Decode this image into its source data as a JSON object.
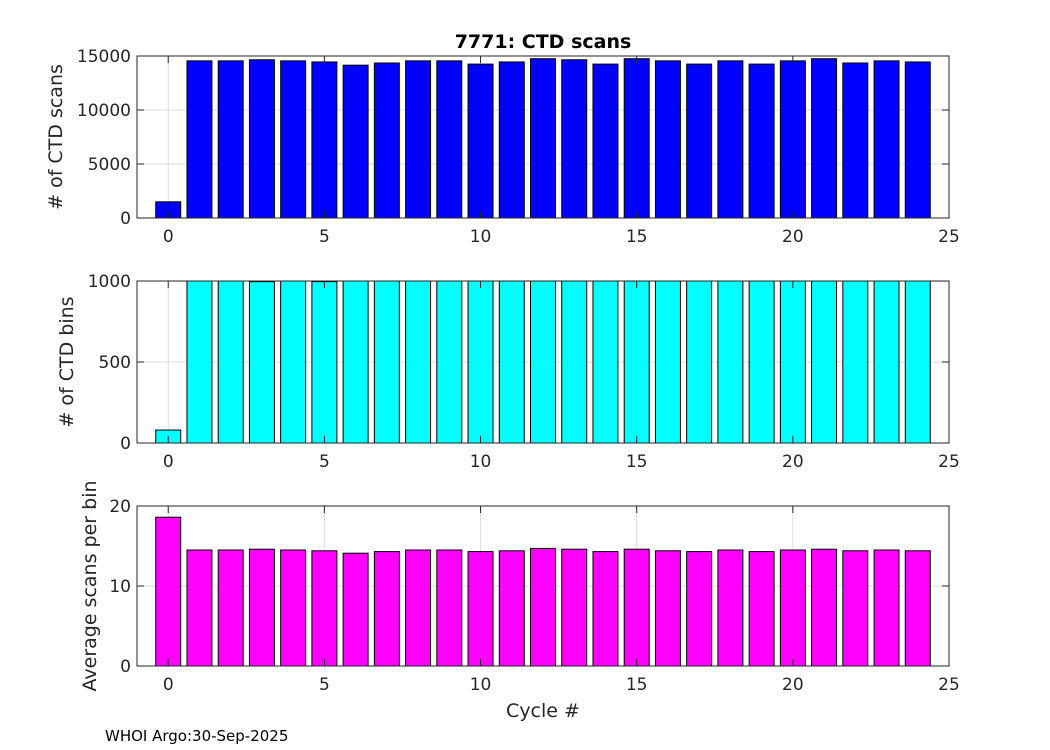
{
  "footer": "WHOI Argo:30-Sep-2025",
  "chart_data": [
    {
      "type": "bar",
      "title": "7771: CTD scans",
      "xlabel": "",
      "ylabel": "# of CTD scans",
      "xlim": [
        -1,
        25
      ],
      "ylim": [
        0,
        15000
      ],
      "xticks": [
        0,
        5,
        10,
        15,
        20,
        25
      ],
      "yticks": [
        0,
        5000,
        10000,
        15000
      ],
      "grid": true,
      "bar_color": "#0000ff",
      "x": [
        0,
        1,
        2,
        3,
        4,
        5,
        6,
        7,
        8,
        9,
        10,
        11,
        12,
        13,
        14,
        15,
        16,
        17,
        18,
        19,
        20,
        21,
        22,
        23,
        24
      ],
      "values": [
        1500,
        14550,
        14550,
        14650,
        14550,
        14450,
        14150,
        14350,
        14550,
        14550,
        14250,
        14450,
        14750,
        14650,
        14250,
        14750,
        14550,
        14250,
        14550,
        14250,
        14550,
        14750,
        14350,
        14550,
        14450
      ]
    },
    {
      "type": "bar",
      "title": "",
      "xlabel": "",
      "ylabel": "# of CTD bins",
      "xlim": [
        -1,
        25
      ],
      "ylim": [
        0,
        1000
      ],
      "xticks": [
        0,
        5,
        10,
        15,
        20,
        25
      ],
      "yticks": [
        0,
        500,
        1000
      ],
      "grid": true,
      "bar_color": "#00ffff",
      "x": [
        0,
        1,
        2,
        3,
        4,
        5,
        6,
        7,
        8,
        9,
        10,
        11,
        12,
        13,
        14,
        15,
        16,
        17,
        18,
        19,
        20,
        21,
        22,
        23,
        24
      ],
      "values": [
        80,
        1000,
        1000,
        996,
        1000,
        996,
        1000,
        1000,
        1000,
        1000,
        1000,
        1000,
        1000,
        1000,
        1000,
        1000,
        1000,
        1000,
        1000,
        1000,
        1000,
        1000,
        1000,
        1000,
        1000
      ]
    },
    {
      "type": "bar",
      "title": "",
      "xlabel": "Cycle #",
      "ylabel": "Average scans per bin",
      "xlim": [
        -1,
        25
      ],
      "ylim": [
        0,
        20
      ],
      "xticks": [
        0,
        5,
        10,
        15,
        20,
        25
      ],
      "yticks": [
        0,
        10,
        20
      ],
      "grid": true,
      "bar_color": "#ff00ff",
      "x": [
        0,
        1,
        2,
        3,
        4,
        5,
        6,
        7,
        8,
        9,
        10,
        11,
        12,
        13,
        14,
        15,
        16,
        17,
        18,
        19,
        20,
        21,
        22,
        23,
        24
      ],
      "values": [
        18.6,
        14.5,
        14.5,
        14.6,
        14.5,
        14.4,
        14.1,
        14.3,
        14.5,
        14.5,
        14.3,
        14.4,
        14.7,
        14.6,
        14.3,
        14.6,
        14.4,
        14.3,
        14.5,
        14.3,
        14.5,
        14.6,
        14.4,
        14.5,
        14.4
      ]
    }
  ]
}
